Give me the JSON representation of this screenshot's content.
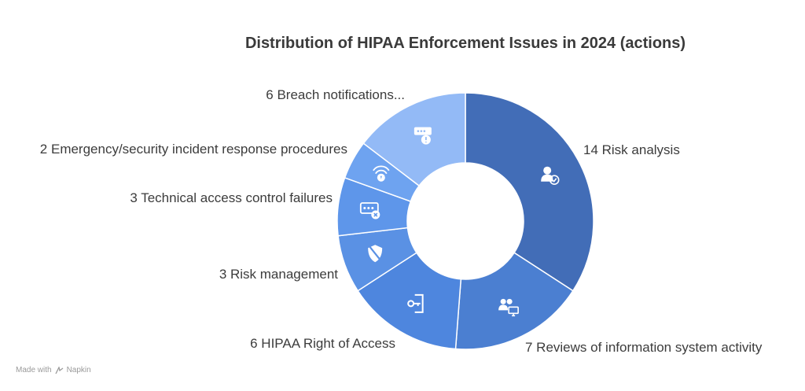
{
  "chart_data": {
    "type": "pie",
    "title": "Distribution of HIPAA Enforcement Issues in 2024 (actions)",
    "slices": [
      {
        "label": "14 Risk analysis",
        "value": 14,
        "color": "#426DB7",
        "icon": "user-check-icon"
      },
      {
        "label": "7 Reviews of information system activity",
        "value": 7,
        "color": "#4B7FD1",
        "icon": "users-monitor-icon"
      },
      {
        "label": "6 HIPAA Right of Access",
        "value": 6,
        "color": "#4E86DE",
        "icon": "door-key-icon"
      },
      {
        "label": "3 Risk management",
        "value": 3,
        "color": "#5A91E4",
        "icon": "shield-slash-icon"
      },
      {
        "label": "3 Technical access control failures",
        "value": 3,
        "color": "#5E96EA",
        "icon": "password-x-icon"
      },
      {
        "label": "2 Emergency/security incident response procedures",
        "value": 2,
        "color": "#6EA3F0",
        "icon": "alarm-signal-icon"
      },
      {
        "label": "6 Breach notifications...",
        "value": 6,
        "color": "#93BAF6",
        "icon": "server-alert-icon"
      }
    ]
  },
  "footer": {
    "made_with": "Made with",
    "brand": "Napkin"
  }
}
